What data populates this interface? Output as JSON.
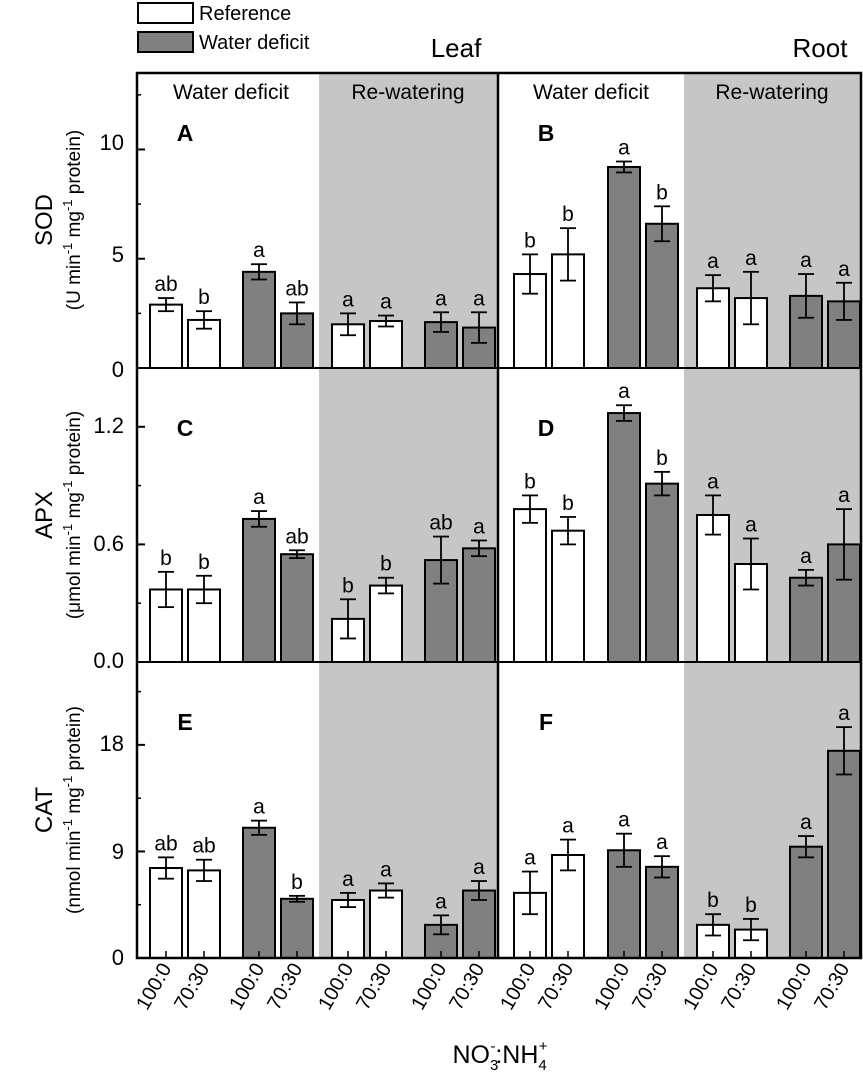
{
  "colors": {
    "reference": "#ffffff",
    "deficit": "#808080",
    "shade": "#c6c6c6",
    "ink": "#000000"
  },
  "legend": {
    "reference": "Reference",
    "deficit": "Water deficit"
  },
  "column_titles": {
    "leaf": "Leaf",
    "root": "Root"
  },
  "period_labels": {
    "deficit": "Water deficit",
    "rewatering": "Re-watering"
  },
  "x_axis": {
    "label_main": "NO",
    "label_sub1": "3",
    "label_sup1": "-",
    "label_colon": ":NH",
    "label_sub2": "4",
    "label_sup2": "+",
    "ticks": [
      "100:0",
      "70:30",
      "100:0",
      "70:30",
      "100:0",
      "70:30",
      "100:0",
      "70:30",
      "100:0",
      "70:30",
      "100:0",
      "70:30",
      "100:0",
      "70:30",
      "100:0",
      "70:30"
    ]
  },
  "rows": [
    {
      "key": "sod",
      "name": "SOD",
      "unit": {
        "a": "(U min",
        "s1": "-1",
        "b": " mg",
        "s2": "-1",
        "c": " protein)"
      },
      "ticks": [
        "0",
        "5",
        "10"
      ],
      "ylim": [
        0,
        13.5
      ]
    },
    {
      "key": "apx",
      "name": "APX",
      "unit": {
        "a": "(μmol min",
        "s1": "-1",
        "b": " mg",
        "s2": "-1",
        "c": " protein)"
      },
      "ticks": [
        "0.0",
        "0.6",
        "1.2"
      ],
      "ylim": [
        0,
        1.5
      ]
    },
    {
      "key": "cat",
      "name": "CAT",
      "unit": {
        "a": "(nmol min",
        "s1": "-1",
        "b": " mg",
        "s2": "-1",
        "c": " protein)"
      },
      "ticks": [
        "0",
        "9",
        "18"
      ],
      "ylim": [
        0,
        25
      ]
    }
  ],
  "chart_data": {
    "type": "bar",
    "title": "",
    "xlabel": "NO3-:NH4+",
    "groups": [
      "Reference",
      "Water deficit",
      "Reference",
      "Water deficit"
    ],
    "categories": [
      "100:0",
      "70:30",
      "100:0",
      "70:30"
    ],
    "panels": [
      {
        "letter": "A",
        "row": 0,
        "column": "Leaf",
        "ylabel": "SOD (U min-1 mg-1 protein)",
        "ylim": [
          0,
          13.5
        ],
        "ticks": [
          0,
          5,
          10
        ],
        "deficit": {
          "values": [
            2.9,
            2.2,
            4.4,
            2.5
          ],
          "errors": [
            0.3,
            0.4,
            0.35,
            0.5
          ],
          "letters": [
            "ab",
            "b",
            "a",
            "ab"
          ]
        },
        "rewatering": {
          "values": [
            2.0,
            2.15,
            2.1,
            1.85
          ],
          "errors": [
            0.5,
            0.25,
            0.45,
            0.7
          ],
          "letters": [
            "a",
            "a",
            "a",
            "a"
          ]
        }
      },
      {
        "letter": "B",
        "row": 0,
        "column": "Root",
        "ylabel": "SOD (U min-1 mg-1 protein)",
        "ylim": [
          0,
          13.5
        ],
        "ticks": [
          0,
          5,
          10
        ],
        "deficit": {
          "values": [
            4.3,
            5.2,
            9.2,
            6.6
          ],
          "errors": [
            0.9,
            1.2,
            0.25,
            0.8
          ],
          "letters": [
            "b",
            "b",
            "a",
            "b"
          ]
        },
        "rewatering": {
          "values": [
            3.65,
            3.2,
            3.3,
            3.05
          ],
          "errors": [
            0.6,
            1.2,
            1.0,
            0.85
          ],
          "letters": [
            "a",
            "a",
            "a",
            "a"
          ]
        }
      },
      {
        "letter": "C",
        "row": 1,
        "column": "Leaf",
        "ylabel": "APX (μmol min-1 mg-1 protein)",
        "ylim": [
          0,
          1.5
        ],
        "ticks": [
          0.0,
          0.6,
          1.2
        ],
        "deficit": {
          "values": [
            0.37,
            0.37,
            0.73,
            0.55
          ],
          "errors": [
            0.09,
            0.07,
            0.04,
            0.02
          ],
          "letters": [
            "b",
            "b",
            "a",
            "ab"
          ]
        },
        "rewatering": {
          "values": [
            0.22,
            0.39,
            0.52,
            0.58
          ],
          "errors": [
            0.1,
            0.04,
            0.12,
            0.04
          ],
          "letters": [
            "b",
            "b",
            "ab",
            "a"
          ]
        }
      },
      {
        "letter": "D",
        "row": 1,
        "column": "Root",
        "ylabel": "APX (μmol min-1 mg-1 protein)",
        "ylim": [
          0,
          1.5
        ],
        "ticks": [
          0.0,
          0.6,
          1.2
        ],
        "deficit": {
          "values": [
            0.78,
            0.67,
            1.27,
            0.91
          ],
          "errors": [
            0.07,
            0.07,
            0.04,
            0.06
          ],
          "letters": [
            "b",
            "b",
            "a",
            "b"
          ]
        },
        "rewatering": {
          "values": [
            0.75,
            0.5,
            0.43,
            0.6
          ],
          "errors": [
            0.1,
            0.13,
            0.04,
            0.18
          ],
          "letters": [
            "a",
            "a",
            "a",
            "a"
          ]
        }
      },
      {
        "letter": "E",
        "row": 2,
        "column": "Leaf",
        "ylabel": "CAT (nmol min-1 mg-1 protein)",
        "ylim": [
          0,
          25
        ],
        "ticks": [
          0,
          9,
          18
        ],
        "deficit": {
          "values": [
            7.6,
            7.4,
            11.0,
            5.0
          ],
          "errors": [
            0.9,
            0.9,
            0.6,
            0.25
          ],
          "letters": [
            "ab",
            "ab",
            "a",
            "b"
          ]
        },
        "rewatering": {
          "values": [
            4.9,
            5.7,
            2.8,
            5.7
          ],
          "errors": [
            0.6,
            0.6,
            0.8,
            0.8
          ],
          "letters": [
            "a",
            "a",
            "a",
            "a"
          ]
        }
      },
      {
        "letter": "F",
        "row": 2,
        "column": "Root",
        "ylabel": "CAT (nmol min-1 mg-1 protein)",
        "ylim": [
          0,
          25
        ],
        "ticks": [
          0,
          9,
          18
        ],
        "deficit": {
          "values": [
            5.5,
            8.7,
            9.1,
            7.7
          ],
          "errors": [
            1.8,
            1.3,
            1.4,
            0.9
          ],
          "letters": [
            "a",
            "a",
            "a",
            "a"
          ]
        },
        "rewatering": {
          "values": [
            2.8,
            2.4,
            9.4,
            17.5
          ],
          "errors": [
            0.9,
            0.9,
            0.9,
            2.0
          ],
          "letters": [
            "b",
            "b",
            "a",
            "a"
          ]
        }
      }
    ]
  }
}
